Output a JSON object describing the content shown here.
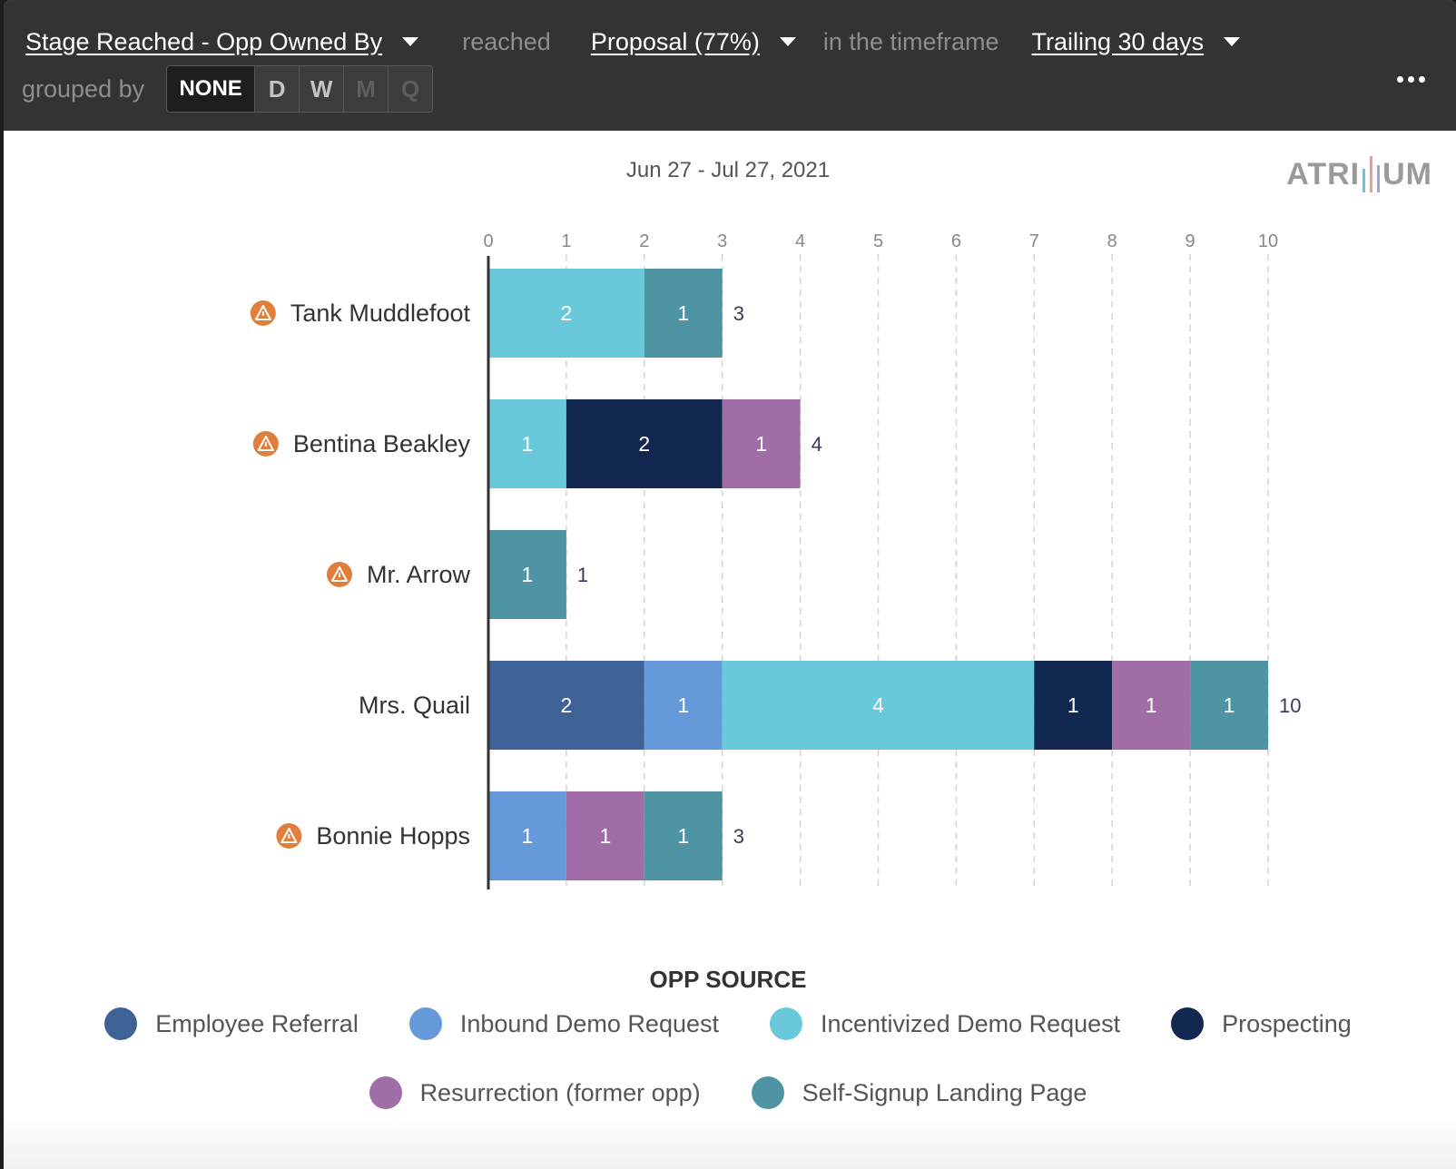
{
  "header": {
    "metric": "Stage Reached - Opp Owned By",
    "reached_text": "reached",
    "stage": "Proposal (77%)",
    "timeframe_text": "in the timeframe",
    "timeframe": "Trailing 30 days",
    "grouped_by_text": "grouped by",
    "group_options": [
      "NONE",
      "D",
      "W",
      "M",
      "Q"
    ],
    "group_selected": "NONE"
  },
  "date_range": "Jun 27 - Jul 27, 2021",
  "logo_text": {
    "left": "ATRI",
    "right": "UM"
  },
  "colors": {
    "Employee Referral": "#3e6295",
    "Inbound Demo Request": "#6699d9",
    "Incentivized Demo Request": "#69c8da",
    "Prospecting": "#11274f",
    "Resurrection (former opp)": "#a16da7",
    "Self-Signup Landing Page": "#4f94a2",
    "warning": "#e07e3c"
  },
  "chart_data": {
    "type": "bar",
    "orientation": "horizontal",
    "stacked": true,
    "title": "Jun 27 - Jul 27, 2021",
    "xlim": [
      0,
      10
    ],
    "xticks": [
      0,
      1,
      2,
      3,
      4,
      5,
      6,
      7,
      8,
      9,
      10
    ],
    "grid": true,
    "legend_title": "OPP SOURCE",
    "legend_position": "bottom",
    "categories": [
      "Tank Muddlefoot",
      "Bentina Beakley",
      "Mr. Arrow",
      "Mrs. Quail",
      "Bonnie Hopps"
    ],
    "warnings": [
      true,
      true,
      true,
      false,
      true
    ],
    "series": [
      {
        "name": "Employee Referral",
        "values": [
          0,
          0,
          0,
          2,
          0
        ]
      },
      {
        "name": "Inbound Demo Request",
        "values": [
          0,
          0,
          0,
          1,
          1
        ]
      },
      {
        "name": "Incentivized Demo Request",
        "values": [
          2,
          1,
          0,
          4,
          0
        ]
      },
      {
        "name": "Prospecting",
        "values": [
          0,
          2,
          0,
          1,
          0
        ]
      },
      {
        "name": "Resurrection (former opp)",
        "values": [
          0,
          1,
          0,
          1,
          1
        ]
      },
      {
        "name": "Self-Signup Landing Page",
        "values": [
          1,
          0,
          1,
          1,
          1
        ]
      }
    ],
    "totals": [
      3,
      4,
      1,
      10,
      3
    ]
  }
}
